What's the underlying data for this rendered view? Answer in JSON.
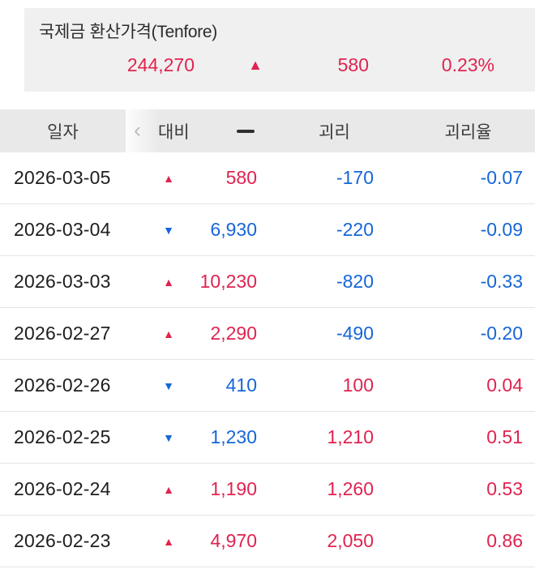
{
  "summary": {
    "title": "국제금 환산가격(Tenfore)",
    "price": "244,270",
    "direction": "up",
    "change": "580",
    "change_rate": "0.23%"
  },
  "table": {
    "headers": {
      "date": "일자",
      "change": "대비",
      "gap": "괴리",
      "gap_rate": "괴리율"
    },
    "rows": [
      {
        "date": "2026-03-05",
        "direction": "up",
        "change": "580",
        "gap": "-170",
        "gap_rate": "-0.07"
      },
      {
        "date": "2026-03-04",
        "direction": "down",
        "change": "6,930",
        "gap": "-220",
        "gap_rate": "-0.09"
      },
      {
        "date": "2026-03-03",
        "direction": "up",
        "change": "10,230",
        "gap": "-820",
        "gap_rate": "-0.33"
      },
      {
        "date": "2026-02-27",
        "direction": "up",
        "change": "2,290",
        "gap": "-490",
        "gap_rate": "-0.20"
      },
      {
        "date": "2026-02-26",
        "direction": "down",
        "change": "410",
        "gap": "100",
        "gap_rate": "0.04"
      },
      {
        "date": "2026-02-25",
        "direction": "down",
        "change": "1,230",
        "gap": "1,210",
        "gap_rate": "0.51"
      },
      {
        "date": "2026-02-24",
        "direction": "up",
        "change": "1,190",
        "gap": "1,260",
        "gap_rate": "0.53"
      },
      {
        "date": "2026-02-23",
        "direction": "up",
        "change": "4,970",
        "gap": "2,050",
        "gap_rate": "0.86"
      }
    ]
  },
  "icons": {
    "up": "▲",
    "down": "▼",
    "scroll_hint": "‹"
  },
  "colors": {
    "up": "#e0234f",
    "down": "#1666d8"
  }
}
